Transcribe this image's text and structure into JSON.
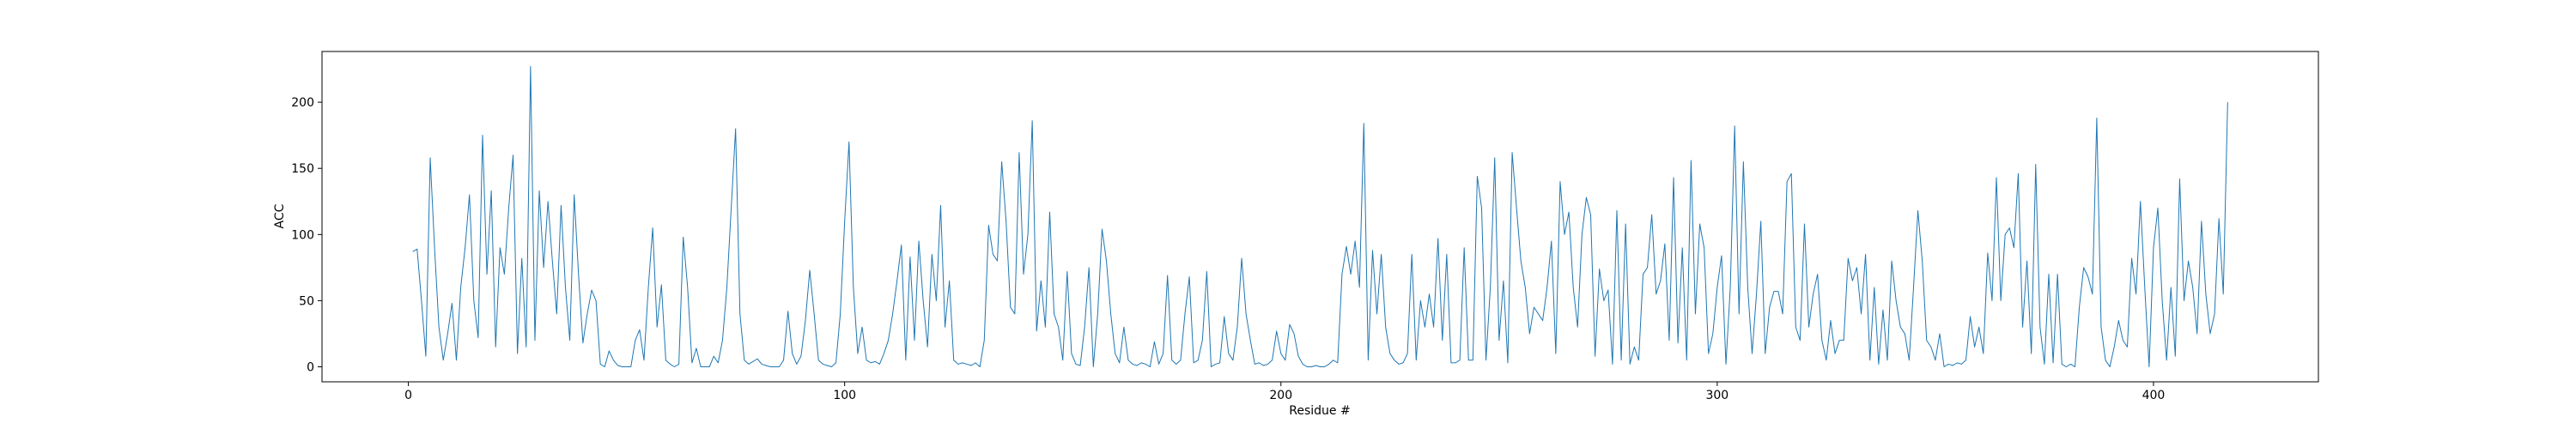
{
  "chart_data": {
    "type": "line",
    "xlabel": "Residue #",
    "ylabel": "ACC",
    "color": "#1f77b4",
    "x": [
      1,
      2,
      3,
      4,
      5,
      6,
      7,
      8,
      9,
      10,
      11,
      12,
      13,
      14,
      15,
      16,
      17,
      18,
      19,
      20,
      21,
      22,
      23,
      24,
      25,
      26,
      27,
      28,
      29,
      30,
      31,
      32,
      33,
      34,
      35,
      36,
      37,
      38,
      39,
      40,
      41,
      42,
      43,
      44,
      45,
      46,
      47,
      48,
      49,
      50,
      51,
      52,
      53,
      54,
      55,
      56,
      57,
      58,
      59,
      60,
      61,
      62,
      63,
      64,
      65,
      66,
      67,
      68,
      69,
      70,
      71,
      72,
      73,
      74,
      75,
      76,
      77,
      78,
      79,
      80,
      81,
      82,
      83,
      84,
      85,
      86,
      87,
      88,
      89,
      90,
      91,
      92,
      93,
      94,
      95,
      96,
      97,
      98,
      99,
      100,
      101,
      102,
      103,
      104,
      105,
      106,
      107,
      108,
      109,
      110,
      111,
      112,
      113,
      114,
      115,
      116,
      117,
      118,
      119,
      120,
      121,
      122,
      123,
      124,
      125,
      126,
      127,
      128,
      129,
      130,
      131,
      132,
      133,
      134,
      135,
      136,
      137,
      138,
      139,
      140,
      141,
      142,
      143,
      144,
      145,
      146,
      147,
      148,
      149,
      150,
      151,
      152,
      153,
      154,
      155,
      156,
      157,
      158,
      159,
      160,
      161,
      162,
      163,
      164,
      165,
      166,
      167,
      168,
      169,
      170,
      171,
      172,
      173,
      174,
      175,
      176,
      177,
      178,
      179,
      180,
      181,
      182,
      183,
      184,
      185,
      186,
      187,
      188,
      189,
      190,
      191,
      192,
      193,
      194,
      195,
      196,
      197,
      198,
      199,
      200,
      201,
      202,
      203,
      204,
      205,
      206,
      207,
      208,
      209,
      210,
      211,
      212,
      213,
      214,
      215,
      216,
      217,
      218,
      219,
      220,
      221,
      222,
      223,
      224,
      225,
      226,
      227,
      228,
      229,
      230,
      231,
      232,
      233,
      234,
      235,
      236,
      237,
      238,
      239,
      240,
      241,
      242,
      243,
      244,
      245,
      246,
      247,
      248,
      249,
      250,
      251,
      252,
      253,
      254,
      255,
      256,
      257,
      258,
      259,
      260,
      261,
      262,
      263,
      264,
      265,
      266,
      267,
      268,
      269,
      270,
      271,
      272,
      273,
      274,
      275,
      276,
      277,
      278,
      279,
      280,
      281,
      282,
      283,
      284,
      285,
      286,
      287,
      288,
      289,
      290,
      291,
      292,
      293,
      294,
      295,
      296,
      297,
      298,
      299,
      300,
      301,
      302,
      303,
      304,
      305,
      306,
      307,
      308,
      309,
      310,
      311,
      312,
      313,
      314,
      315,
      316,
      317,
      318,
      319,
      320,
      321,
      322,
      323,
      324,
      325,
      326,
      327,
      328,
      329,
      330,
      331,
      332,
      333,
      334,
      335,
      336,
      337,
      338,
      339,
      340,
      341,
      342,
      343,
      344,
      345,
      346,
      347,
      348,
      349,
      350,
      351,
      352,
      353,
      354,
      355,
      356,
      357,
      358,
      359,
      360,
      361,
      362,
      363,
      364,
      365,
      366,
      367,
      368,
      369,
      370,
      371,
      372,
      373,
      374,
      375,
      376,
      377,
      378,
      379,
      380,
      381,
      382,
      383,
      384,
      385,
      386,
      387,
      388,
      389,
      390,
      391,
      392,
      393,
      394,
      395,
      396,
      397,
      398,
      399,
      400,
      401,
      402,
      403,
      404,
      405,
      406,
      407,
      408,
      409,
      410,
      411,
      412,
      413,
      414,
      415,
      416,
      417
    ],
    "values": [
      87,
      89,
      50,
      8,
      158,
      90,
      30,
      5,
      25,
      48,
      5,
      60,
      90,
      130,
      50,
      22,
      175,
      70,
      133,
      15,
      90,
      70,
      120,
      160,
      10,
      82,
      15,
      227,
      20,
      133,
      75,
      125,
      80,
      40,
      122,
      60,
      20,
      130,
      70,
      18,
      40,
      58,
      50,
      2,
      0,
      12,
      5,
      1,
      0,
      0,
      0,
      20,
      28,
      5,
      60,
      105,
      30,
      62,
      5,
      2,
      0,
      2,
      98,
      60,
      3,
      14,
      0,
      0,
      0,
      8,
      3,
      20,
      60,
      120,
      180,
      40,
      5,
      2,
      4,
      6,
      2,
      1,
      0,
      0,
      0,
      5,
      42,
      10,
      2,
      8,
      35,
      73,
      40,
      5,
      2,
      1,
      0,
      3,
      40,
      110,
      170,
      60,
      10,
      30,
      5,
      3,
      4,
      2,
      10,
      20,
      40,
      65,
      92,
      5,
      83,
      20,
      95,
      50,
      15,
      85,
      50,
      122,
      30,
      65,
      5,
      2,
      3,
      2,
      1,
      3,
      0,
      20,
      107,
      85,
      80,
      155,
      110,
      45,
      40,
      162,
      70,
      100,
      186,
      27,
      65,
      30,
      117,
      40,
      30,
      5,
      72,
      10,
      2,
      1,
      30,
      75,
      0,
      40,
      104,
      80,
      40,
      10,
      3,
      30,
      5,
      2,
      1,
      3,
      2,
      0,
      19,
      2,
      10,
      69,
      5,
      2,
      5,
      40,
      68,
      3,
      5,
      20,
      72,
      0,
      2,
      3,
      38,
      10,
      5,
      30,
      82,
      40,
      20,
      2,
      3,
      1,
      2,
      5,
      27,
      10,
      5,
      32,
      25,
      8,
      2,
      0,
      0,
      1,
      0,
      0,
      2,
      5,
      3,
      70,
      91,
      70,
      95,
      60,
      184,
      5,
      88,
      40,
      85,
      30,
      10,
      5,
      2,
      3,
      10,
      85,
      5,
      50,
      30,
      55,
      30,
      97,
      20,
      85,
      3,
      3,
      5,
      90,
      5,
      5,
      144,
      120,
      5,
      60,
      158,
      20,
      65,
      3,
      162,
      120,
      80,
      60,
      25,
      45,
      40,
      35,
      60,
      95,
      10,
      140,
      100,
      117,
      60,
      30,
      100,
      128,
      115,
      8,
      74,
      50,
      58,
      2,
      118,
      5,
      108,
      2,
      15,
      5,
      70,
      75,
      115,
      55,
      65,
      93,
      20,
      143,
      18,
      90,
      5,
      156,
      40,
      108,
      90,
      10,
      25,
      60,
      84,
      2,
      60,
      182,
      40,
      155,
      60,
      10,
      55,
      110,
      10,
      45,
      57,
      57,
      40,
      140,
      146,
      30,
      20,
      108,
      30,
      55,
      70,
      20,
      5,
      35,
      10,
      20,
      20,
      82,
      65,
      75,
      40,
      85,
      5,
      60,
      2,
      43,
      5,
      80,
      50,
      30,
      25,
      5,
      60,
      118,
      80,
      20,
      15,
      5,
      25,
      0,
      2,
      1,
      3,
      2,
      5,
      38,
      15,
      30,
      10,
      86,
      50,
      143,
      50,
      100,
      105,
      90,
      146,
      30,
      80,
      10,
      153,
      30,
      2,
      70,
      3,
      70,
      2,
      0,
      2,
      0,
      45,
      75,
      68,
      55,
      188,
      30,
      5,
      0,
      15,
      35,
      20,
      15,
      82,
      55,
      125,
      60,
      0,
      90,
      120,
      50,
      5,
      60,
      8,
      142,
      50,
      80,
      60,
      25,
      110,
      55,
      25,
      40,
      112,
      55,
      200
    ],
    "xlim": [
      -19.8,
      437.8
    ],
    "xticks": [
      0,
      100,
      200,
      300,
      400
    ],
    "ylim": [
      -11.35,
      238.35
    ],
    "yticks": [
      0,
      50,
      100,
      150,
      200
    ]
  }
}
